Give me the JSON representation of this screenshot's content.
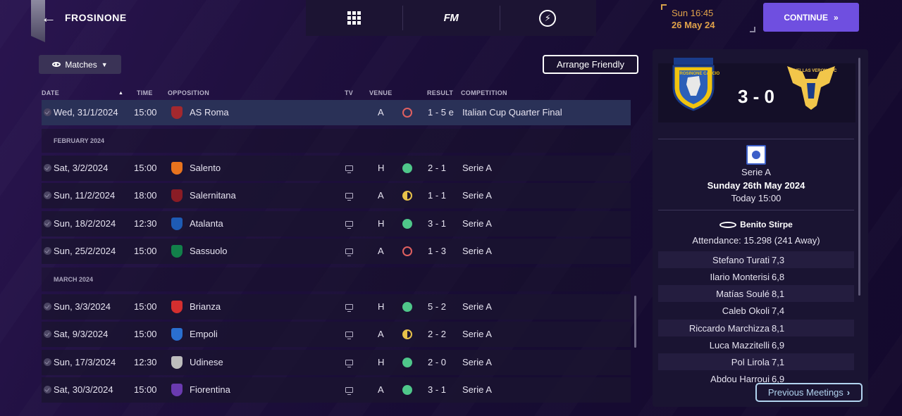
{
  "header": {
    "club_name": "FROSINONE",
    "date_time": "Sun 16:45",
    "date_day": "26 May 24",
    "continue_label": "CONTINUE",
    "fm_label": "FM"
  },
  "toolbar": {
    "view_label": "Matches",
    "arrange_label": "Arrange Friendly"
  },
  "table": {
    "headers": {
      "date": "DATE",
      "time": "TIME",
      "opposition": "OPPOSITION",
      "tv": "TV",
      "venue": "VENUE",
      "result": "RESULT",
      "competition": "COMPETITION"
    },
    "months": [
      "FEBRUARY 2024",
      "MARCH 2024"
    ],
    "rows": [
      {
        "date": "Wed, 31/1/2024",
        "time": "15:00",
        "opponent": "AS Roma",
        "venue": "A",
        "result": "1 - 5 e",
        "competition": "Italian Cup Quarter Final",
        "outcome": "loss",
        "crest_color": "#a3282e"
      },
      {
        "date": "Sat, 3/2/2024",
        "time": "15:00",
        "opponent": "Salento",
        "venue": "H",
        "result": "2 - 1",
        "competition": "Serie A",
        "outcome": "win",
        "crest_color": "#e8731e"
      },
      {
        "date": "Sun, 11/2/2024",
        "time": "18:00",
        "opponent": "Salernitana",
        "venue": "A",
        "result": "1 - 1",
        "competition": "Serie A",
        "outcome": "draw",
        "crest_color": "#8a1c25"
      },
      {
        "date": "Sun, 18/2/2024",
        "time": "12:30",
        "opponent": "Atalanta",
        "venue": "H",
        "result": "3 - 1",
        "competition": "Serie A",
        "outcome": "win",
        "crest_color": "#1e5bb4"
      },
      {
        "date": "Sun, 25/2/2024",
        "time": "15:00",
        "opponent": "Sassuolo",
        "venue": "A",
        "result": "1 - 3",
        "competition": "Serie A",
        "outcome": "loss",
        "crest_color": "#12804a"
      },
      {
        "date": "Sun, 3/3/2024",
        "time": "15:00",
        "opponent": "Brianza",
        "venue": "H",
        "result": "5 - 2",
        "competition": "Serie A",
        "outcome": "win",
        "crest_color": "#d32f2f"
      },
      {
        "date": "Sat, 9/3/2024",
        "time": "15:00",
        "opponent": "Empoli",
        "venue": "A",
        "result": "2 - 2",
        "competition": "Serie A",
        "outcome": "draw",
        "crest_color": "#2a6fd0"
      },
      {
        "date": "Sun, 17/3/2024",
        "time": "12:30",
        "opponent": "Udinese",
        "venue": "H",
        "result": "2 - 0",
        "competition": "Serie A",
        "outcome": "win",
        "crest_color": "#bdbdbd"
      },
      {
        "date": "Sat, 30/3/2024",
        "time": "15:00",
        "opponent": "Fiorentina",
        "venue": "A",
        "result": "3 - 1",
        "competition": "Serie A",
        "outcome": "win",
        "crest_color": "#6a3ab0"
      }
    ]
  },
  "match": {
    "home_name": "FROSINONE CALCIO",
    "away_name": "HELLAS VERONA FC",
    "score": "3 - 0",
    "competition": "Serie A",
    "date": "Sunday 26th May 2024",
    "time": "Today 15:00",
    "stadium": "Benito Stirpe",
    "attendance": "Attendance: 15.298 (241 Away)",
    "players": [
      {
        "name": "Stefano Turati",
        "rating": "7,3"
      },
      {
        "name": "Ilario Monterisi",
        "rating": "6,8"
      },
      {
        "name": "Matías Soulé",
        "rating": "8,1"
      },
      {
        "name": "Caleb Okoli",
        "rating": "7,4"
      },
      {
        "name": "Riccardo Marchizza",
        "rating": "8,1"
      },
      {
        "name": "Luca Mazzitelli",
        "rating": "6,9"
      },
      {
        "name": "Pol Lirola",
        "rating": "7,1"
      },
      {
        "name": "Abdou Harroui",
        "rating": "6,9"
      }
    ],
    "previous_label": "Previous Meetings"
  },
  "colors": {
    "accent": "#6f4fe0",
    "date_accent": "#e0a24a",
    "win": "#4fc78a",
    "loss": "#e06060",
    "draw": "#e8c24a"
  }
}
